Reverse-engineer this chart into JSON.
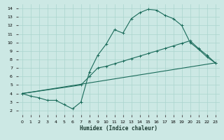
{
  "xlabel": "Humidex (Indice chaleur)",
  "bg_color": "#cce8e4",
  "line_color": "#1a6b5a",
  "grid_color": "#aad4ce",
  "xlim": [
    -0.5,
    23.5
  ],
  "ylim": [
    1.5,
    14.5
  ],
  "xticks": [
    0,
    1,
    2,
    3,
    4,
    5,
    6,
    7,
    8,
    9,
    10,
    11,
    12,
    13,
    14,
    15,
    16,
    17,
    18,
    19,
    20,
    21,
    22,
    23
  ],
  "yticks": [
    2,
    3,
    4,
    5,
    6,
    7,
    8,
    9,
    10,
    11,
    12,
    13,
    14
  ],
  "curve1_x": [
    0,
    1,
    2,
    3,
    4,
    5,
    6,
    7,
    8,
    9,
    10,
    11,
    12,
    13,
    14,
    15,
    16,
    17,
    18,
    19,
    20,
    21,
    22,
    23
  ],
  "curve1_y": [
    4.0,
    3.7,
    3.5,
    3.2,
    3.2,
    2.7,
    2.2,
    3.0,
    6.5,
    8.5,
    9.8,
    11.5,
    11.1,
    12.8,
    13.5,
    13.9,
    13.8,
    13.2,
    12.8,
    12.0,
    10.0,
    9.2,
    8.3,
    7.6
  ],
  "curve2_x": [
    0,
    7,
    8,
    9,
    10,
    11,
    12,
    13,
    14,
    15,
    16,
    17,
    18,
    19,
    20,
    21,
    22,
    23
  ],
  "curve2_y": [
    4.0,
    5.0,
    6.0,
    7.0,
    7.2,
    7.5,
    7.8,
    8.1,
    8.4,
    8.7,
    9.0,
    9.3,
    9.6,
    9.9,
    10.2,
    9.3,
    8.5,
    7.6
  ],
  "curve3_x": [
    0,
    23
  ],
  "curve3_y": [
    4.0,
    7.6
  ]
}
